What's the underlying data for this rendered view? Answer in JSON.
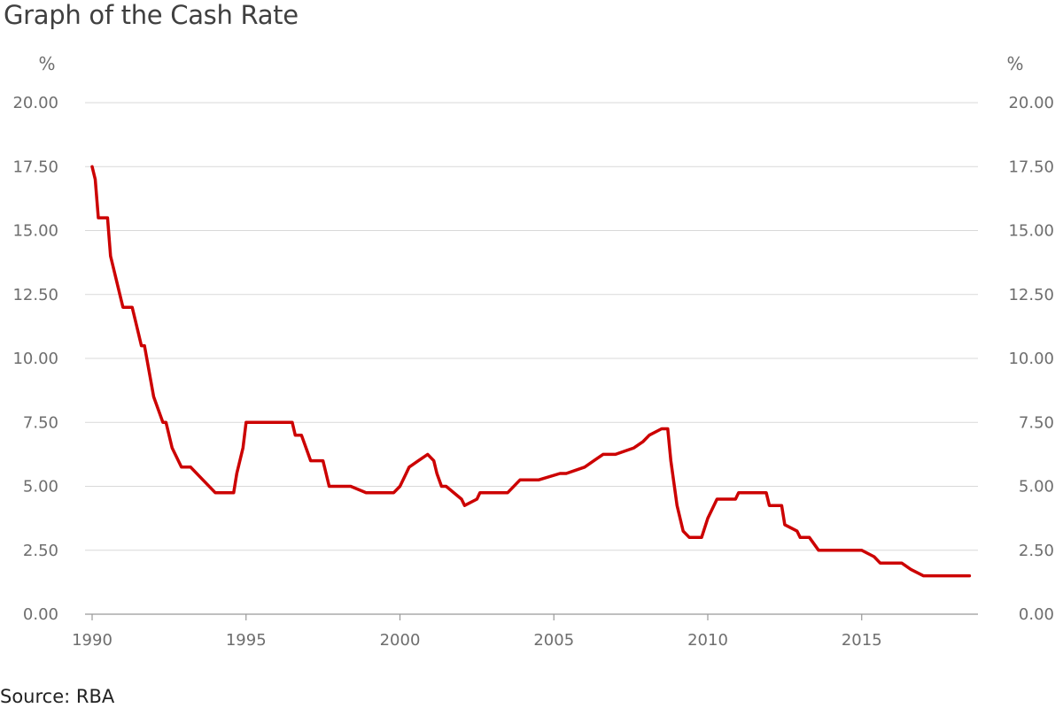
{
  "title": "Graph of the Cash Rate",
  "source": "Source: RBA",
  "chart_data": {
    "type": "line",
    "title": "Graph of the Cash Rate",
    "xlabel": "",
    "ylabel": "%",
    "y_unit_left": "%",
    "y_unit_right": "%",
    "xlim": [
      1989.8,
      2018.8
    ],
    "ylim": [
      0,
      20
    ],
    "x_ticks": [
      1990,
      1995,
      2000,
      2005,
      2010,
      2015
    ],
    "x_tick_labels": [
      "1990",
      "1995",
      "2000",
      "2005",
      "2010",
      "2015"
    ],
    "y_ticks": [
      0,
      2.5,
      5,
      7.5,
      10,
      12.5,
      15,
      17.5,
      20
    ],
    "y_tick_labels": [
      "0.00",
      "2.50",
      "5.00",
      "7.50",
      "10.00",
      "12.50",
      "15.00",
      "17.50",
      "20.00"
    ],
    "grid": "horizontal",
    "line_color": "#cc0000",
    "series": [
      {
        "x": [
          1990.0,
          1990.1,
          1990.2,
          1990.5,
          1990.6,
          1990.8,
          1990.9,
          1991.0,
          1991.3,
          1991.4,
          1991.6,
          1991.7,
          1991.85,
          1992.0,
          1992.3,
          1992.4,
          1992.6,
          1992.9,
          1993.2,
          1993.6,
          1994.0,
          1994.6,
          1994.7,
          1994.9,
          1995.0,
          1995.3,
          1996.0,
          1996.5,
          1996.6,
          1996.8,
          1997.1,
          1997.5,
          1997.6,
          1997.7,
          1998.0,
          1998.4,
          1998.9,
          1999.5,
          1999.8,
          2000.0,
          2000.2,
          2000.3,
          2000.6,
          2000.9,
          2001.1,
          2001.2,
          2001.35,
          2001.5,
          2002.0,
          2002.1,
          2002.5,
          2002.6,
          2003.5,
          2003.9,
          2004.5,
          2005.2,
          2005.4,
          2006.0,
          2006.3,
          2006.6,
          2007.0,
          2007.6,
          2007.9,
          2008.1,
          2008.5,
          2008.7,
          2008.8,
          2009.0,
          2009.2,
          2009.4,
          2009.8,
          2010.0,
          2010.3,
          2010.9,
          2011.0,
          2011.5,
          2011.9,
          2012.0,
          2012.4,
          2012.5,
          2012.9,
          2013.0,
          2013.3,
          2013.6,
          2014.0,
          2015.0,
          2015.4,
          2015.6,
          2016.0,
          2016.3,
          2016.6,
          2017.0,
          2018.0,
          2018.5
        ],
        "y": [
          17.5,
          17.0,
          15.5,
          15.5,
          14.0,
          13.0,
          12.5,
          12.0,
          12.0,
          11.5,
          10.5,
          10.5,
          9.5,
          8.5,
          7.5,
          7.5,
          6.5,
          5.75,
          5.75,
          5.25,
          4.75,
          4.75,
          5.5,
          6.5,
          7.5,
          7.5,
          7.5,
          7.5,
          7.0,
          7.0,
          6.0,
          6.0,
          5.5,
          5.0,
          5.0,
          5.0,
          4.75,
          4.75,
          4.75,
          5.0,
          5.5,
          5.75,
          6.0,
          6.25,
          6.0,
          5.5,
          5.0,
          5.0,
          4.5,
          4.25,
          4.5,
          4.75,
          4.75,
          5.25,
          5.25,
          5.5,
          5.5,
          5.75,
          6.0,
          6.25,
          6.25,
          6.5,
          6.75,
          7.0,
          7.25,
          7.25,
          6.0,
          4.25,
          3.25,
          3.0,
          3.0,
          3.75,
          4.5,
          4.5,
          4.75,
          4.75,
          4.75,
          4.25,
          4.25,
          3.5,
          3.25,
          3.0,
          3.0,
          2.5,
          2.5,
          2.5,
          2.25,
          2.0,
          2.0,
          2.0,
          1.75,
          1.5,
          1.5,
          1.5
        ]
      }
    ]
  }
}
